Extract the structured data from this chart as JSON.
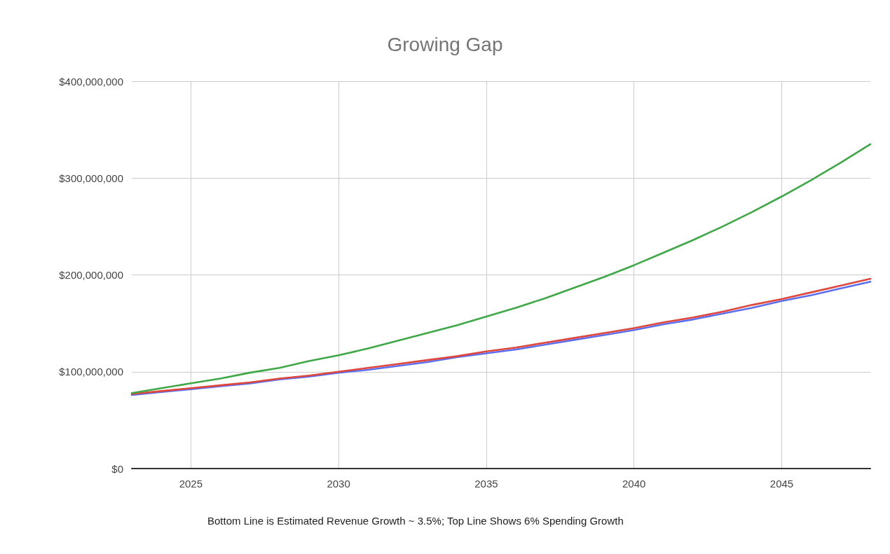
{
  "chart_data": {
    "type": "line",
    "title": "Growing Gap",
    "annotations": [
      "Bottom Line is Estimated Revenue Growth ~ 3.5%; Top Line Shows 6% Spending Growth"
    ],
    "x": [
      2023,
      2024,
      2025,
      2026,
      2027,
      2028,
      2029,
      2030,
      2031,
      2032,
      2033,
      2034,
      2035,
      2036,
      2037,
      2038,
      2039,
      2040,
      2041,
      2042,
      2043,
      2044,
      2045,
      2046,
      2047,
      2048
    ],
    "series": [
      {
        "color": "#5b6ff0",
        "values": [
          76000000,
          79000000,
          82000000,
          85000000,
          88000000,
          92000000,
          95000000,
          99000000,
          102000000,
          106000000,
          110000000,
          115000000,
          119000000,
          123000000,
          128000000,
          133000000,
          138000000,
          143000000,
          149000000,
          154000000,
          160000000,
          166000000,
          173000000,
          179000000,
          186000000,
          193000000
        ]
      },
      {
        "color": "#e0473c",
        "values": [
          77000000,
          80000000,
          83000000,
          86000000,
          89000000,
          93000000,
          96000000,
          100000000,
          104000000,
          108000000,
          112000000,
          116000000,
          121000000,
          125000000,
          130000000,
          135000000,
          140000000,
          145000000,
          151000000,
          156000000,
          162000000,
          169000000,
          175000000,
          182000000,
          189000000,
          196000000
        ]
      },
      {
        "color": "#3ea847",
        "values": [
          78000000,
          83000000,
          88000000,
          93000000,
          99000000,
          104000000,
          111000000,
          117000000,
          124000000,
          132000000,
          140000000,
          148000000,
          157000000,
          166000000,
          176000000,
          187000000,
          198000000,
          210000000,
          223000000,
          236000000,
          250000000,
          265000000,
          281000000,
          298000000,
          316000000,
          335000000
        ]
      }
    ],
    "xlim": [
      2023,
      2048
    ],
    "xticks": [
      2025,
      2030,
      2035,
      2040,
      2045
    ],
    "ylim": [
      0,
      400000000
    ],
    "yticks": [
      {
        "value": 0,
        "label": "$0"
      },
      {
        "value": 100000000,
        "label": "$100,000,000"
      },
      {
        "value": 200000000,
        "label": "$200,000,000"
      },
      {
        "value": 300000000,
        "label": "$300,000,000"
      },
      {
        "value": 400000000,
        "label": "$400,000,000"
      }
    ],
    "grid": true,
    "marker": "none",
    "line_style": "solid"
  }
}
